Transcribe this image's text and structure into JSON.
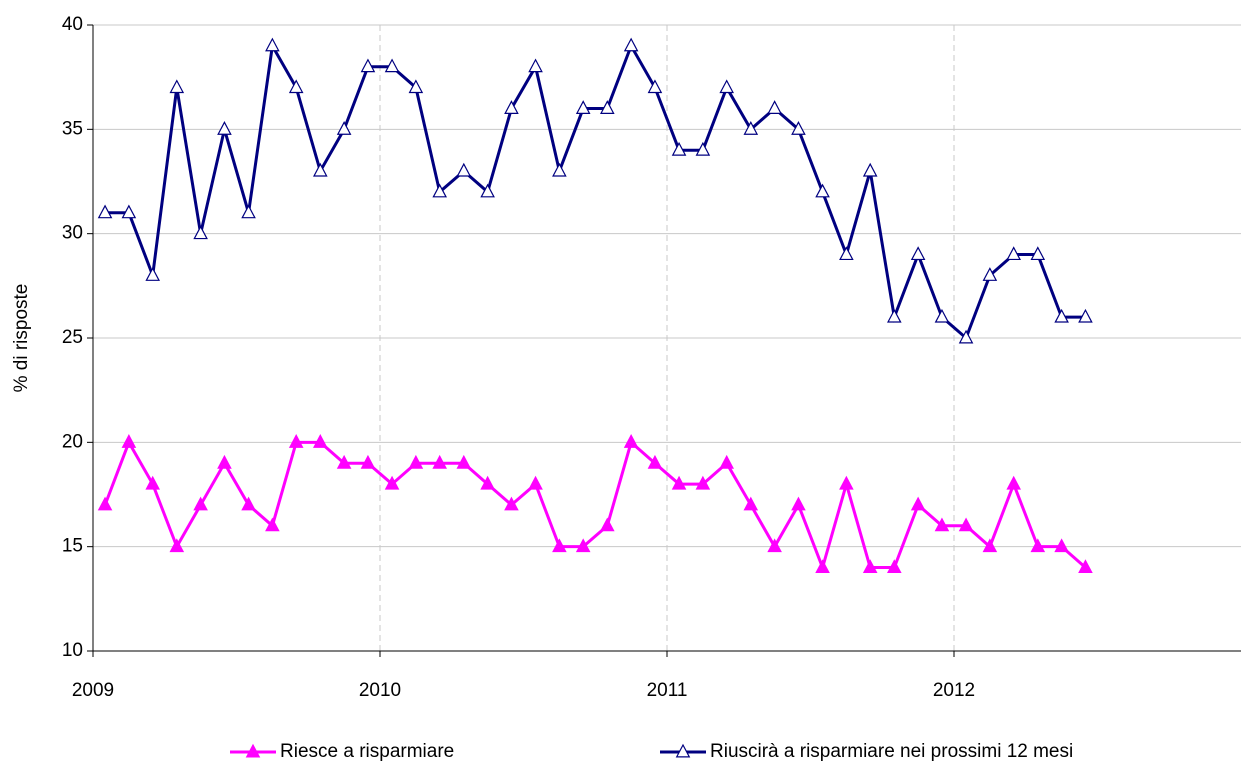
{
  "chart_data": {
    "type": "line",
    "ylabel": "% di risposte",
    "x": [
      2009.042,
      2009.125,
      2009.208,
      2009.292,
      2009.375,
      2009.458,
      2009.542,
      2009.625,
      2009.708,
      2009.792,
      2009.875,
      2009.958,
      2010.042,
      2010.125,
      2010.208,
      2010.292,
      2010.375,
      2010.458,
      2010.542,
      2010.625,
      2010.708,
      2010.792,
      2010.875,
      2010.958,
      2011.042,
      2011.125,
      2011.208,
      2011.292,
      2011.375,
      2011.458,
      2011.542,
      2011.625,
      2011.708,
      2011.792,
      2011.875,
      2011.958,
      2012.042,
      2012.125,
      2012.208,
      2012.292,
      2012.375,
      2012.458
    ],
    "series": [
      {
        "name": "Riesce a risparmiare",
        "color": "#ff00ff",
        "marker": "filled-triangle",
        "values": [
          17,
          20,
          18,
          15,
          17,
          19,
          17,
          16,
          20,
          20,
          19,
          19,
          18,
          19,
          19,
          19,
          18,
          17,
          18,
          15,
          15,
          16,
          20,
          19,
          18,
          18,
          19,
          17,
          15,
          17,
          14,
          18,
          14,
          14,
          17,
          16,
          16,
          15,
          18,
          15,
          15,
          14
        ]
      },
      {
        "name": "Riuscirà a risparmiare nei prossimi 12 mesi",
        "color": "#000080",
        "marker": "open-triangle",
        "values": [
          31,
          31,
          28,
          37,
          30,
          35,
          31,
          39,
          37,
          33,
          35,
          38,
          38,
          37,
          32,
          33,
          32,
          36,
          38,
          33,
          36,
          36,
          39,
          37,
          34,
          34,
          37,
          35,
          36,
          35,
          32,
          29,
          33,
          26,
          29,
          26,
          25,
          28,
          29,
          29,
          26,
          26
        ]
      }
    ],
    "xlim": [
      2009,
      2013
    ],
    "xticks": [
      2009,
      2010,
      2011,
      2012
    ],
    "ylim": [
      10,
      40
    ],
    "yticks": [
      10,
      15,
      20,
      25,
      30,
      35,
      40
    ],
    "grid": true,
    "legend": "bottom"
  }
}
